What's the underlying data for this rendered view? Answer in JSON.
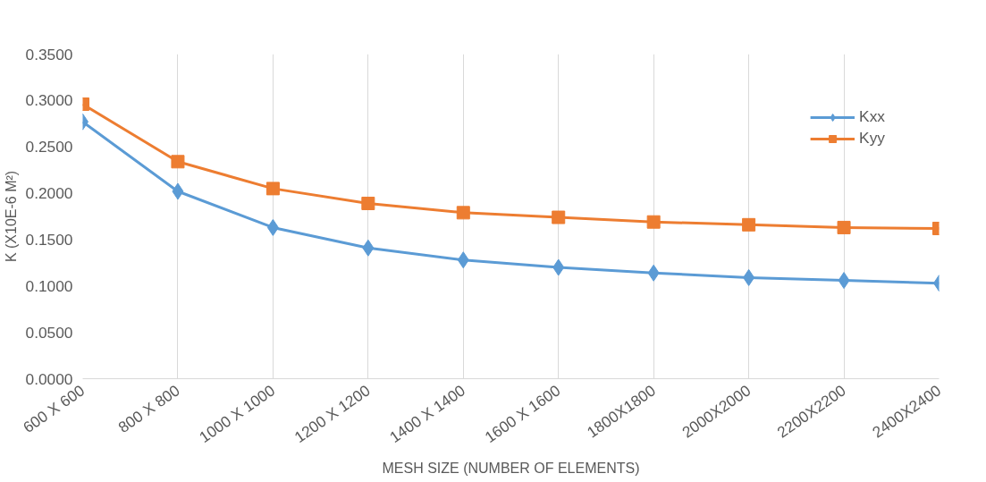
{
  "chart_data": {
    "type": "line",
    "xlabel": "MESH SIZE (NUMBER OF ELEMENTS)",
    "ylabel": "K (X10E-6 M²)",
    "categories": [
      "600 X 600",
      "800 X 800",
      "1000 X 1000",
      "1200 X 1200",
      "1400 X 1400",
      "1600 X 1600",
      "1800X1800",
      "2000X2000",
      "2200X2200",
      "2400X2400"
    ],
    "series": [
      {
        "name": "Kxx",
        "color": "#5b9bd5",
        "marker": "diamond",
        "values": [
          0.277,
          0.202,
          0.163,
          0.141,
          0.128,
          0.12,
          0.114,
          0.109,
          0.106,
          0.103
        ]
      },
      {
        "name": "Kyy",
        "color": "#ed7d31",
        "marker": "square",
        "values": [
          0.296,
          0.234,
          0.205,
          0.189,
          0.179,
          0.174,
          0.169,
          0.166,
          0.163,
          0.162
        ]
      }
    ],
    "ylim": [
      0,
      0.35
    ],
    "yticks": [
      {
        "value": 0,
        "label": "0.0000"
      },
      {
        "value": 0.05,
        "label": "0.0500"
      },
      {
        "value": 0.1,
        "label": "0.1000"
      },
      {
        "value": 0.15,
        "label": "0.1500"
      },
      {
        "value": 0.2,
        "label": "0.2000"
      },
      {
        "value": 0.25,
        "label": "0.2500"
      },
      {
        "value": 0.3,
        "label": "0.3000"
      },
      {
        "value": 0.35,
        "label": "0.3500"
      }
    ],
    "grid": "x",
    "legend": "top right"
  }
}
